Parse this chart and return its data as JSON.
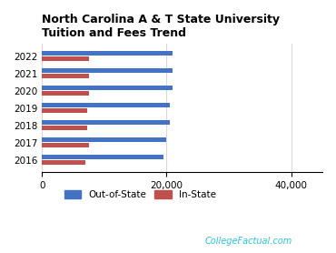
{
  "title": "North Carolina A & T State University\nTuition and Fees Trend",
  "years": [
    "2022",
    "2021",
    "2020",
    "2019",
    "2018",
    "2017",
    "2016"
  ],
  "out_of_state": [
    21000,
    21000,
    21000,
    20500,
    20500,
    20000,
    19500
  ],
  "in_state": [
    7500,
    7500,
    7500,
    7200,
    7200,
    7500,
    7000
  ],
  "bar_color_out": "#4472C4",
  "bar_color_in": "#C0504D",
  "xlim": [
    0,
    45000
  ],
  "xticks": [
    0,
    20000,
    40000
  ],
  "xticklabels": [
    "0",
    "20,000",
    "40,000"
  ],
  "legend_out_label": "Out-of-State",
  "legend_in_label": "In-State",
  "watermark": "CollegeFactual.com",
  "watermark_color": "#26C6DA",
  "background_color": "#FFFFFF",
  "grid_color": "#D9D9D9",
  "title_fontsize": 9,
  "tick_fontsize": 7.5,
  "legend_fontsize": 7.5
}
